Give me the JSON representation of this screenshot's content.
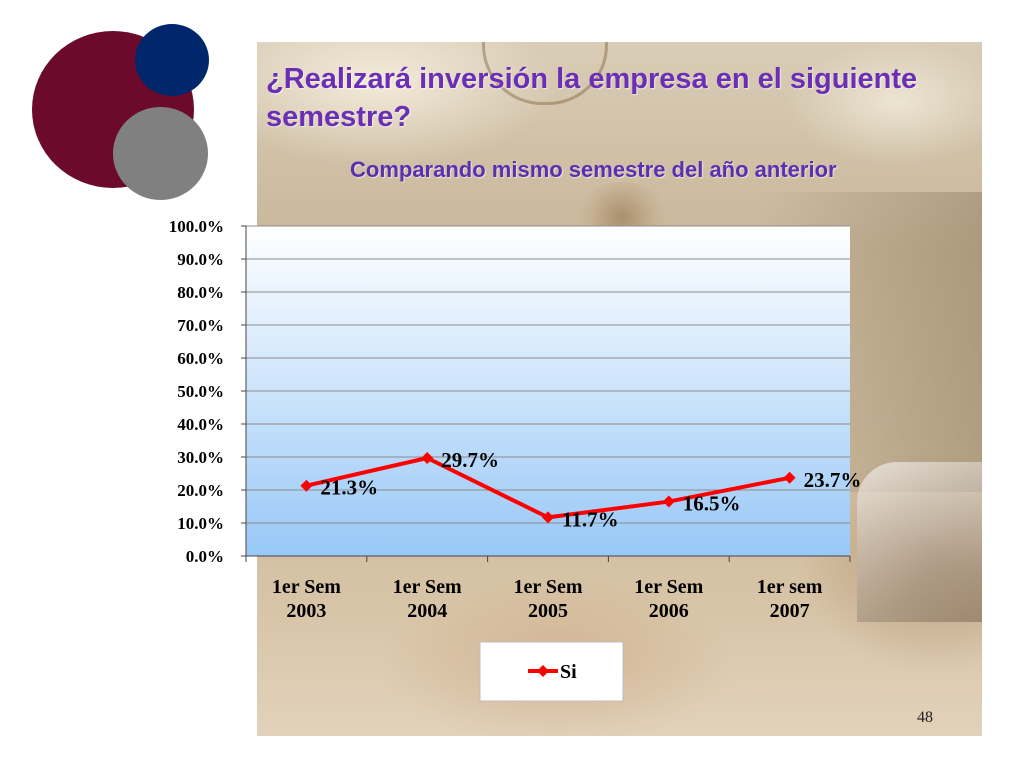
{
  "slide": {
    "title": "¿Realizará inversión la empresa en el siguiente semestre?",
    "subtitle": "Comparando mismo semestre del año anterior",
    "page_number": "48"
  },
  "colors": {
    "title": "#6a2fb4",
    "series": "#ff0000",
    "circle_maroon": "#6b0a2a",
    "circle_navy": "#00276b",
    "circle_gray": "#808080"
  },
  "chart_data": {
    "type": "line",
    "categories": [
      [
        "1er Sem",
        "2003"
      ],
      [
        "1er Sem",
        "2004"
      ],
      [
        "1er Sem",
        "2005"
      ],
      [
        "1er Sem",
        "2006"
      ],
      [
        "1er sem",
        "2007"
      ]
    ],
    "series": [
      {
        "name": "Si",
        "values": [
          21.3,
          29.7,
          11.7,
          16.5,
          23.7
        ],
        "labels": [
          "21.3%",
          "29.7%",
          "11.7%",
          "16.5%",
          "23.7%"
        ]
      }
    ],
    "y_ticks": [
      "0.0%",
      "10.0%",
      "20.0%",
      "30.0%",
      "40.0%",
      "50.0%",
      "60.0%",
      "70.0%",
      "80.0%",
      "90.0%",
      "100.0%"
    ],
    "ylim": [
      0,
      100
    ],
    "grid": true,
    "legend": "bottom"
  }
}
